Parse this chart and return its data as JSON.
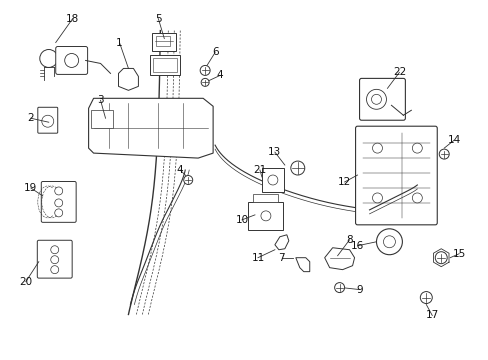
{
  "background_color": "#ffffff",
  "figure_width": 4.89,
  "figure_height": 3.6,
  "dpi": 100,
  "line_color": "#333333",
  "label_color": "#111111",
  "label_fontsize": 7.5,
  "lw": 0.9
}
